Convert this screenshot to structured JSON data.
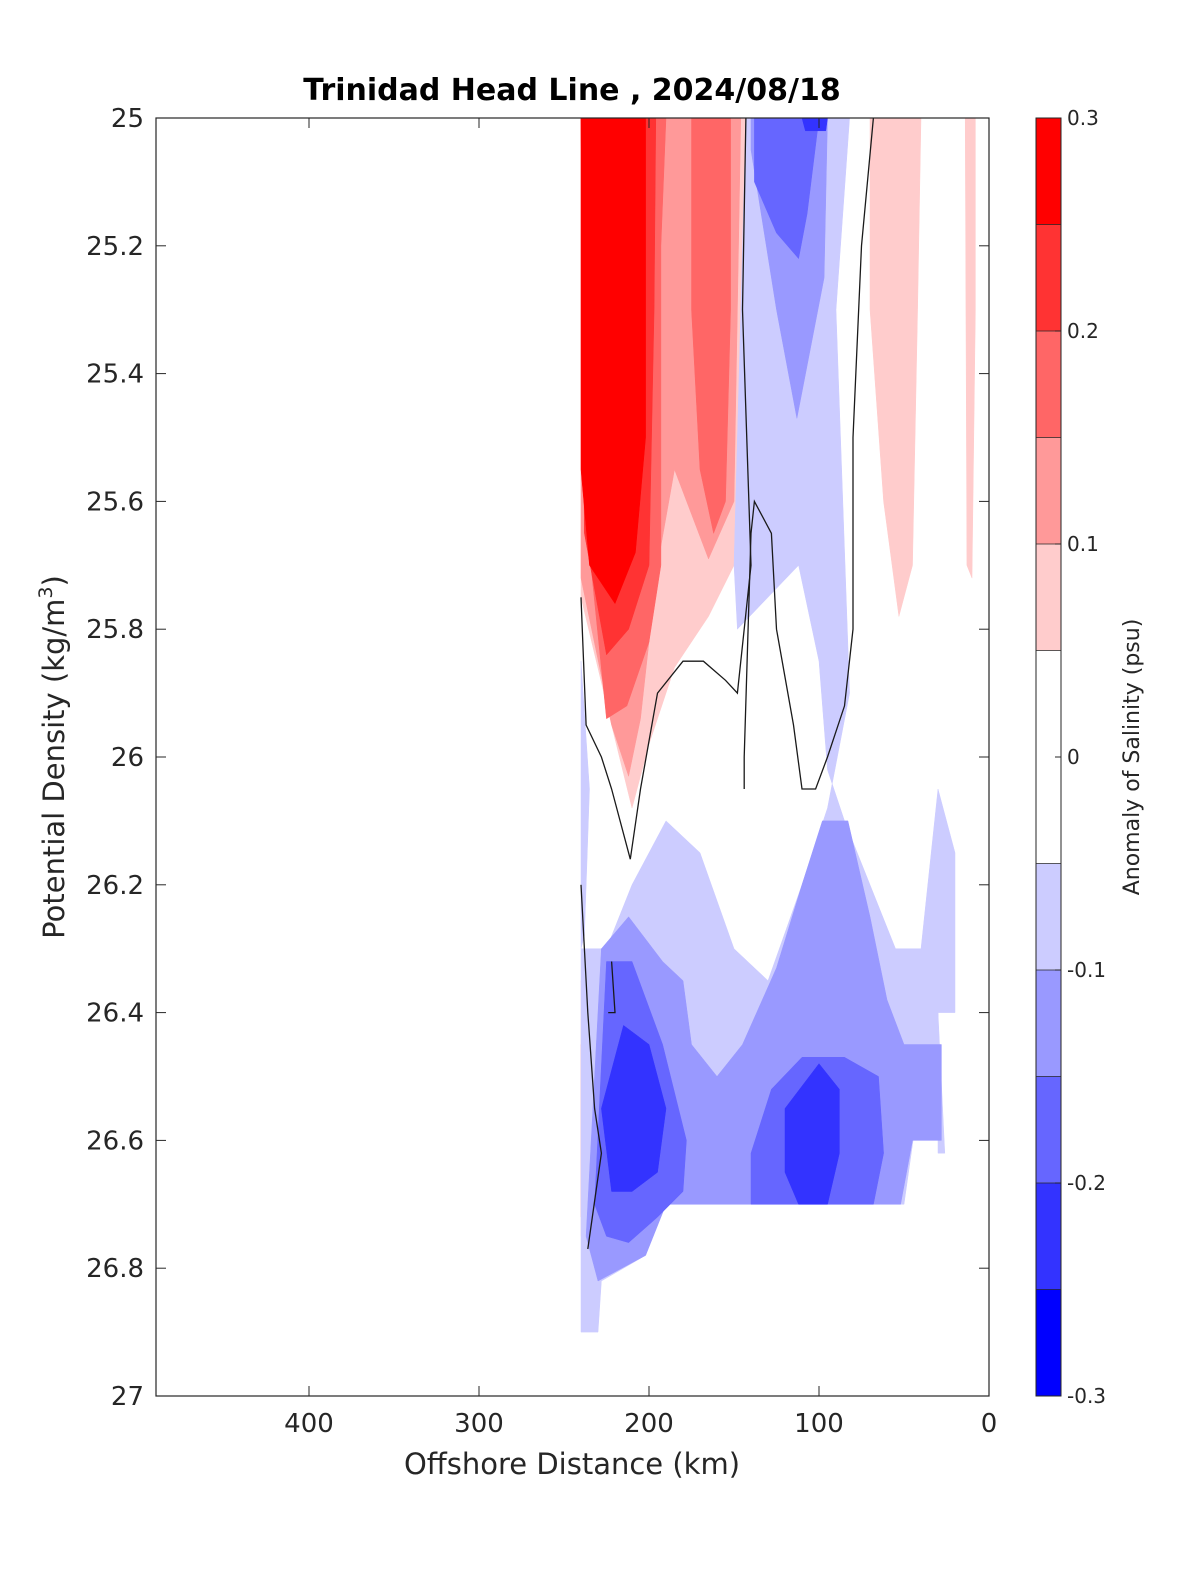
{
  "chart_data": {
    "type": "heatmap",
    "title": "Trinidad Head Line , 2024/08/18",
    "xlabel": "Offshore Distance (km)",
    "ylabel": "Potential Density (kg/m³)",
    "ylabel_main": "Potential Density (kg/m",
    "ylabel_sup": "3",
    "ylabel_close": ")",
    "xlim": [
      490,
      0
    ],
    "ylim": [
      25,
      27
    ],
    "x_reversed": true,
    "y_reversed": true,
    "xticks": [
      400,
      300,
      200,
      100,
      0
    ],
    "xtick_labels": [
      "400",
      "300",
      "200",
      "100",
      "0"
    ],
    "yticks": [
      25,
      25.2,
      25.4,
      25.6,
      25.8,
      26,
      26.2,
      26.4,
      26.6,
      26.8,
      27
    ],
    "ytick_labels": [
      "25",
      "25.2",
      "25.4",
      "25.6",
      "25.8",
      "26",
      "26.2",
      "26.4",
      "26.6",
      "26.8",
      "27"
    ],
    "colorbar": {
      "label": "Anomaly of Salinity (psu)",
      "range": [
        -0.3,
        0.3
      ],
      "ticks": [
        -0.3,
        -0.2,
        -0.1,
        0,
        0.1,
        0.2,
        0.3
      ],
      "tick_labels": [
        "-0.3",
        "-0.2",
        "-0.1",
        "0",
        "0.1",
        "0.2",
        "0.3"
      ],
      "levels": [
        -0.3,
        -0.25,
        -0.2,
        -0.15,
        -0.1,
        -0.05,
        0.05,
        0.1,
        0.15,
        0.2,
        0.25,
        0.3
      ],
      "colors": [
        "#0000ff",
        "#3333ff",
        "#6666ff",
        "#9999ff",
        "#ccccff",
        "#ffffff",
        "#ffcccc",
        "#ff9999",
        "#ff6666",
        "#ff3333",
        "#ff0000"
      ]
    },
    "regions": [
      {
        "level": 0.075,
        "color": "#ffcccc",
        "points": [
          [
            240,
            25
          ],
          [
            143,
            25
          ],
          [
            147,
            25.4
          ],
          [
            150,
            25.7
          ],
          [
            165,
            25.78
          ],
          [
            185,
            25.86
          ],
          [
            200,
            25.98
          ],
          [
            210,
            26.08
          ],
          [
            222,
            25.95
          ],
          [
            240,
            25.75
          ]
        ]
      },
      {
        "level": 0.125,
        "color": "#ff9999",
        "points": [
          [
            240,
            25
          ],
          [
            146,
            25
          ],
          [
            148,
            25.3
          ],
          [
            150,
            25.6
          ],
          [
            165,
            25.69
          ],
          [
            185,
            25.55
          ],
          [
            195,
            25.7
          ],
          [
            205,
            25.94
          ],
          [
            212,
            26.03
          ],
          [
            222,
            25.95
          ],
          [
            240,
            25.72
          ]
        ]
      },
      {
        "level": 0.175,
        "color": "#ff6666",
        "points": [
          [
            240,
            25
          ],
          [
            190,
            25
          ],
          [
            193,
            25.2
          ],
          [
            193,
            25.7
          ],
          [
            200,
            25.82
          ],
          [
            213,
            25.92
          ],
          [
            225,
            25.94
          ],
          [
            238,
            25.6
          ]
        ]
      },
      {
        "level": 0.175,
        "color": "#ff6666",
        "points": [
          [
            175,
            25
          ],
          [
            152,
            25
          ],
          [
            152,
            25.3
          ],
          [
            155,
            25.6
          ],
          [
            162,
            25.65
          ],
          [
            170,
            25.55
          ],
          [
            175,
            25.3
          ]
        ]
      },
      {
        "level": 0.225,
        "color": "#ff3333",
        "points": [
          [
            240,
            25
          ],
          [
            196,
            25
          ],
          [
            197,
            25.3
          ],
          [
            200,
            25.7
          ],
          [
            212,
            25.8
          ],
          [
            225,
            25.84
          ],
          [
            238,
            25.65
          ]
        ]
      },
      {
        "level": 0.275,
        "color": "#ff0000",
        "points": [
          [
            240,
            25
          ],
          [
            202,
            25
          ],
          [
            202,
            25.5
          ],
          [
            208,
            25.68
          ],
          [
            220,
            25.76
          ],
          [
            235,
            25.7
          ],
          [
            240,
            25.55
          ]
        ]
      },
      {
        "level": 0.075,
        "color": "#ffcccc",
        "points": [
          [
            70,
            25
          ],
          [
            40,
            25
          ],
          [
            42,
            25.3
          ],
          [
            45,
            25.7
          ],
          [
            53,
            25.78
          ],
          [
            62,
            25.6
          ],
          [
            70,
            25.3
          ]
        ]
      },
      {
        "level": 0.075,
        "color": "#ffcccc",
        "points": [
          [
            14,
            25
          ],
          [
            8,
            25
          ],
          [
            8,
            25.3
          ],
          [
            10,
            25.72
          ],
          [
            13,
            25.7
          ]
        ]
      },
      {
        "level": 0.075,
        "color": "#ffcccc",
        "points": [
          [
            240,
            26.35
          ],
          [
            228,
            26.62
          ],
          [
            238,
            26.75
          ],
          [
            240,
            26.75
          ]
        ]
      },
      {
        "level": 0.125,
        "color": "#ff9999",
        "points": [
          [
            240,
            26.45
          ],
          [
            232,
            26.6
          ],
          [
            237,
            26.72
          ],
          [
            240,
            26.72
          ]
        ]
      },
      {
        "level": -0.075,
        "color": "#ccccff",
        "points": [
          [
            143,
            25
          ],
          [
            82,
            25
          ],
          [
            90,
            25.3
          ],
          [
            82,
            25.9
          ],
          [
            95,
            26.08
          ],
          [
            110,
            26.2
          ],
          [
            130,
            26.35
          ],
          [
            150,
            26.3
          ],
          [
            170,
            26.15
          ],
          [
            190,
            26.1
          ],
          [
            210,
            26.2
          ],
          [
            225,
            26.3
          ],
          [
            240,
            26.3
          ],
          [
            240,
            26.9
          ],
          [
            230,
            26.9
          ],
          [
            228,
            26.82
          ],
          [
            215,
            26.8
          ],
          [
            202,
            26.78
          ],
          [
            190,
            26.7
          ],
          [
            140,
            26.7
          ],
          [
            100,
            26.7
          ],
          [
            62,
            26.7
          ],
          [
            50,
            26.7
          ],
          [
            42,
            26.55
          ],
          [
            30,
            26.6
          ],
          [
            30,
            26.4
          ],
          [
            20,
            26.4
          ],
          [
            20,
            26.15
          ],
          [
            30,
            26.05
          ],
          [
            40,
            26.3
          ],
          [
            55,
            26.3
          ],
          [
            70,
            26.2
          ],
          [
            85,
            26.1
          ],
          [
            95,
            26.02
          ],
          [
            100,
            25.85
          ],
          [
            112,
            25.7
          ],
          [
            148,
            25.8
          ],
          [
            150,
            25.7
          ]
        ]
      },
      {
        "level": -0.075,
        "color": "#ccccff",
        "points": [
          [
            240,
            25.85
          ],
          [
            235,
            26.05
          ],
          [
            238,
            26.28
          ],
          [
            240,
            26.3
          ]
        ]
      },
      {
        "level": -0.075,
        "color": "#ccccff",
        "points": [
          [
            30,
            26.4
          ],
          [
            26,
            26.62
          ],
          [
            30,
            26.62
          ]
        ]
      },
      {
        "level": -0.125,
        "color": "#9999ff",
        "points": [
          [
            140,
            25
          ],
          [
            95,
            25
          ],
          [
            97,
            25.25
          ],
          [
            113,
            25.47
          ],
          [
            125,
            25.3
          ],
          [
            140,
            25.05
          ]
        ]
      },
      {
        "level": -0.125,
        "color": "#9999ff",
        "points": [
          [
            228,
            26.3
          ],
          [
            212,
            26.25
          ],
          [
            192,
            26.32
          ],
          [
            180,
            26.35
          ],
          [
            175,
            26.45
          ],
          [
            160,
            26.5
          ],
          [
            145,
            26.45
          ],
          [
            125,
            26.33
          ],
          [
            110,
            26.2
          ],
          [
            98,
            26.1
          ],
          [
            83,
            26.1
          ],
          [
            70,
            26.25
          ],
          [
            60,
            26.38
          ],
          [
            50,
            26.45
          ],
          [
            45,
            26.45
          ],
          [
            28,
            26.45
          ],
          [
            28,
            26.6
          ],
          [
            45,
            26.6
          ],
          [
            52,
            26.7
          ],
          [
            64,
            26.7
          ],
          [
            190,
            26.7
          ],
          [
            202,
            26.78
          ],
          [
            230,
            26.82
          ],
          [
            237,
            26.75
          ]
        ]
      },
      {
        "level": -0.175,
        "color": "#6666ff",
        "points": [
          [
            138,
            25
          ],
          [
            100,
            25
          ],
          [
            107,
            25.15
          ],
          [
            112,
            25.22
          ],
          [
            125,
            25.18
          ],
          [
            138,
            25.1
          ]
        ]
      },
      {
        "level": -0.175,
        "color": "#6666ff",
        "points": [
          [
            225,
            26.32
          ],
          [
            210,
            26.32
          ],
          [
            192,
            26.45
          ],
          [
            178,
            26.6
          ],
          [
            180,
            26.68
          ],
          [
            195,
            26.72
          ],
          [
            212,
            26.76
          ],
          [
            225,
            26.75
          ],
          [
            232,
            26.7
          ]
        ]
      },
      {
        "level": -0.175,
        "color": "#6666ff",
        "points": [
          [
            140,
            26.62
          ],
          [
            128,
            26.52
          ],
          [
            110,
            26.47
          ],
          [
            85,
            26.47
          ],
          [
            65,
            26.5
          ],
          [
            62,
            26.62
          ],
          [
            68,
            26.7
          ],
          [
            140,
            26.7
          ]
        ]
      },
      {
        "level": -0.225,
        "color": "#3333ff",
        "points": [
          [
            215,
            26.42
          ],
          [
            200,
            26.45
          ],
          [
            190,
            26.55
          ],
          [
            195,
            26.65
          ],
          [
            210,
            26.68
          ],
          [
            222,
            26.68
          ],
          [
            228,
            26.55
          ]
        ]
      },
      {
        "level": -0.225,
        "color": "#3333ff",
        "points": [
          [
            120,
            26.55
          ],
          [
            100,
            26.48
          ],
          [
            88,
            26.52
          ],
          [
            88,
            26.62
          ],
          [
            95,
            26.7
          ],
          [
            112,
            26.7
          ],
          [
            120,
            26.65
          ]
        ]
      },
      {
        "level": -0.225,
        "color": "#3333ff",
        "points": [
          [
            110,
            25
          ],
          [
            95,
            25
          ],
          [
            96,
            25.02
          ],
          [
            108,
            25.02
          ]
        ]
      }
    ],
    "contour_lines": [
      {
        "level": 0.05,
        "points": [
          [
            240,
            25.75
          ],
          [
            237,
            25.95
          ],
          [
            228,
            26.0
          ],
          [
            222,
            26.05
          ],
          [
            211,
            26.16
          ],
          [
            205,
            26.05
          ],
          [
            195,
            25.9
          ],
          [
            180,
            25.85
          ],
          [
            168,
            25.85
          ],
          [
            155,
            25.88
          ],
          [
            148,
            25.9
          ],
          [
            140,
            25.7
          ],
          [
            145,
            25.3
          ],
          [
            143,
            25
          ]
        ]
      },
      {
        "level": 0.05,
        "points": [
          [
            68,
            25
          ],
          [
            75,
            25.2
          ],
          [
            80,
            25.5
          ],
          [
            80,
            25.8
          ],
          [
            85,
            25.92
          ],
          [
            95,
            26.0
          ],
          [
            102,
            26.05
          ],
          [
            110,
            26.05
          ],
          [
            115,
            25.95
          ],
          [
            125,
            25.8
          ],
          [
            128,
            25.65
          ],
          [
            138,
            25.6
          ],
          [
            140,
            25.65
          ],
          [
            144,
            26.0
          ],
          [
            144,
            26.05
          ]
        ]
      },
      {
        "level": 0.05,
        "points": [
          [
            240,
            26.2
          ],
          [
            236,
            26.4
          ],
          [
            232,
            26.55
          ],
          [
            228,
            26.62
          ],
          [
            236,
            26.77
          ]
        ]
      },
      {
        "level": 0.05,
        "points": [
          [
            222,
            26.32
          ],
          [
            220,
            26.4
          ],
          [
            224,
            26.4
          ]
        ]
      }
    ]
  }
}
